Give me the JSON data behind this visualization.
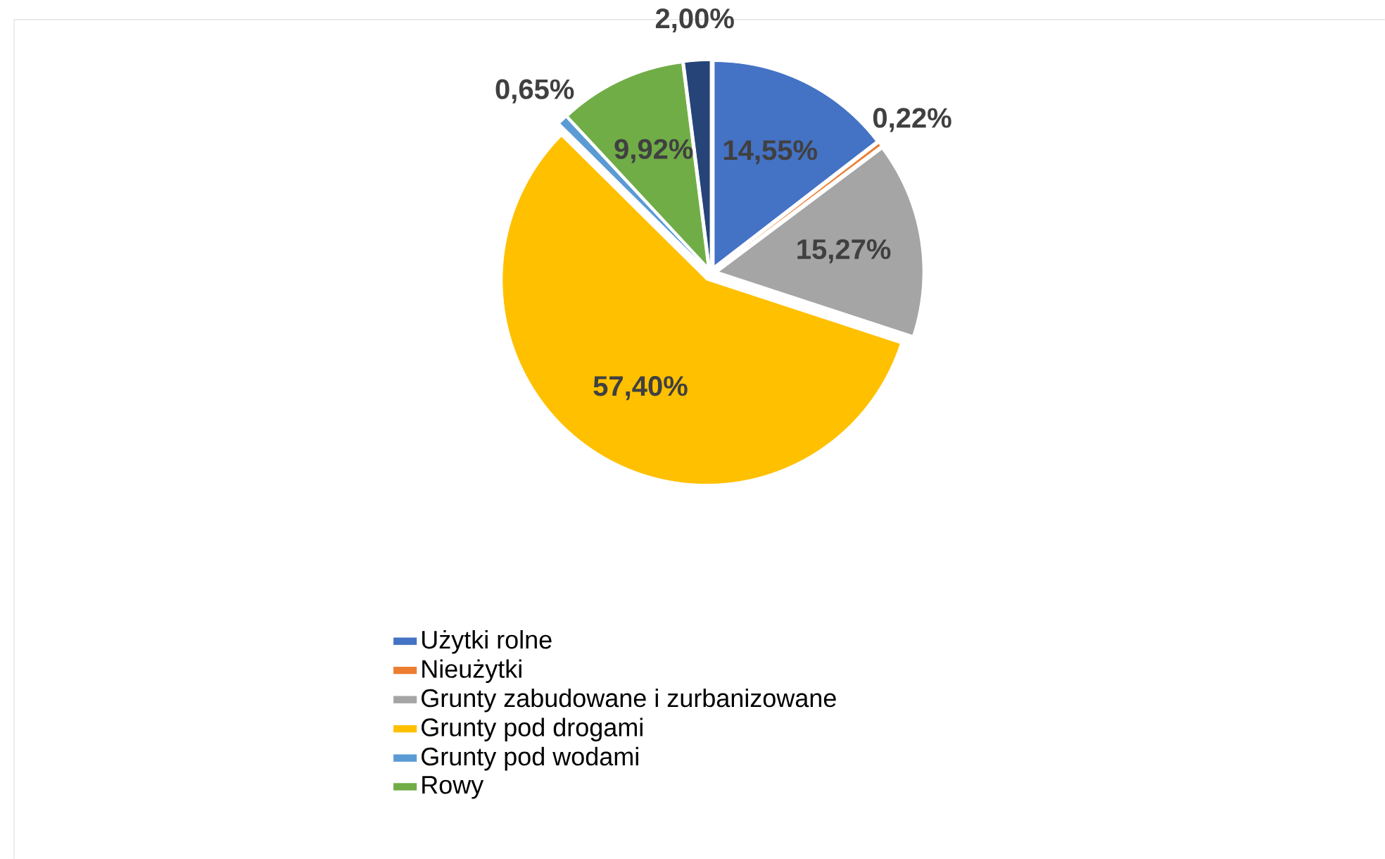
{
  "chart_data": {
    "type": "pie",
    "categories": [
      "Użytki rolne",
      "Nieużytki",
      "Grunty zabudowane  i zurbanizowane",
      "Grunty pod drogami",
      "Grunty pod wodami",
      "Rowy",
      null
    ],
    "values": [
      14.55,
      0.22,
      15.27,
      57.4,
      0.65,
      9.92,
      2.0
    ],
    "colors": [
      "#4472c4",
      "#ed7d31",
      "#a5a5a5",
      "#ffc000",
      "#5b9bd5",
      "#70ad47",
      "#264478"
    ],
    "value_labels": [
      "14,55%",
      "0,22%",
      "15,27%",
      "57,40%",
      "0,65%",
      "9,92%",
      "2,00%"
    ],
    "legend": "bottom"
  }
}
